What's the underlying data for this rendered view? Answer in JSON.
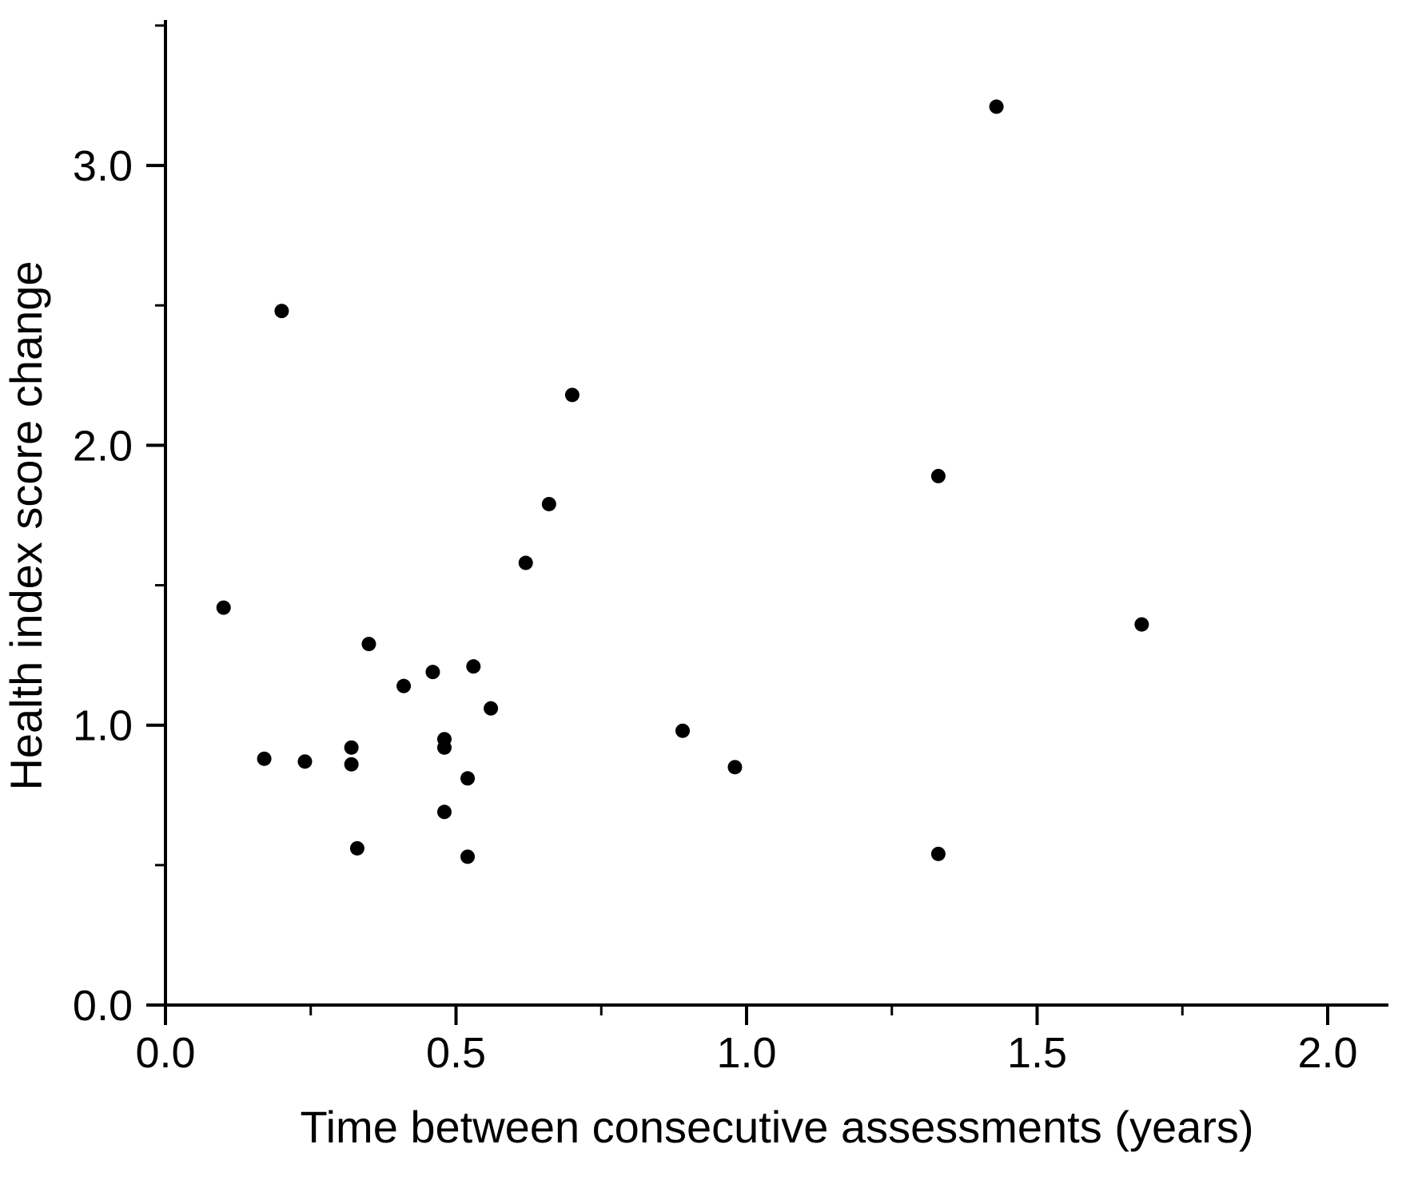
{
  "figure": {
    "background": "#ffffff"
  },
  "chart_data": {
    "type": "scatter",
    "title": "",
    "xlabel": "Time between consecutive assessments (years)",
    "ylabel": "Health index score change",
    "xlim": [
      0,
      2.104
    ],
    "ylim": [
      0,
      3.52
    ],
    "x_major_ticks": [
      0.0,
      0.5,
      1.0,
      1.5,
      2.0
    ],
    "x_tick_labels": [
      "0.0",
      "0.5",
      "1.0",
      "1.5",
      "2.0"
    ],
    "x_minor_ticks": [
      0.25,
      0.75,
      1.25,
      1.75
    ],
    "y_major_ticks": [
      0.0,
      1.0,
      2.0,
      3.0
    ],
    "y_tick_labels": [
      "0.0",
      "1.0",
      "2.0",
      "3.0"
    ],
    "y_minor_ticks": [
      0.5,
      1.5,
      2.5,
      3.5
    ],
    "grid": false,
    "legend": null,
    "marker": {
      "shape": "circle",
      "color": "#000000",
      "radius_px": 9
    },
    "axis_color": "#000000",
    "points": [
      [
        0.1,
        1.42
      ],
      [
        0.17,
        0.88
      ],
      [
        0.2,
        2.48
      ],
      [
        0.24,
        0.87
      ],
      [
        0.32,
        0.92
      ],
      [
        0.32,
        0.86
      ],
      [
        0.33,
        0.56
      ],
      [
        0.35,
        1.29
      ],
      [
        0.41,
        1.14
      ],
      [
        0.46,
        1.19
      ],
      [
        0.48,
        0.95
      ],
      [
        0.48,
        0.92
      ],
      [
        0.48,
        0.69
      ],
      [
        0.52,
        0.81
      ],
      [
        0.52,
        0.53
      ],
      [
        0.53,
        1.21
      ],
      [
        0.56,
        1.06
      ],
      [
        0.62,
        1.58
      ],
      [
        0.66,
        1.79
      ],
      [
        0.7,
        2.18
      ],
      [
        0.89,
        0.98
      ],
      [
        0.98,
        0.85
      ],
      [
        1.33,
        1.89
      ],
      [
        1.33,
        0.54
      ],
      [
        1.43,
        3.21
      ],
      [
        1.68,
        1.36
      ]
    ]
  }
}
